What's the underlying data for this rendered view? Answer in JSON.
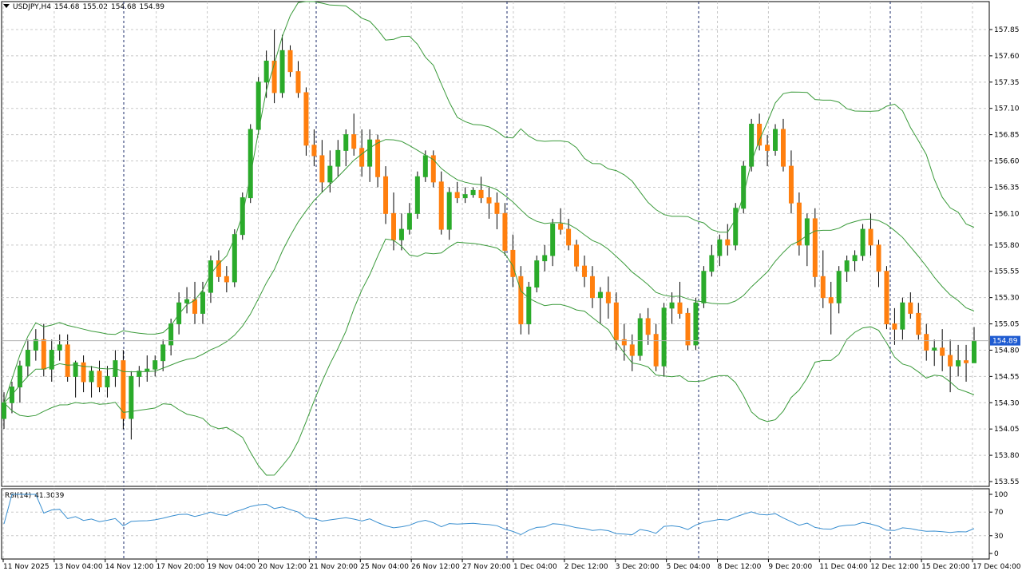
{
  "header": {
    "symbol": "USDJPY,H4",
    "open": "154.68",
    "high": "155.02",
    "low": "154.68",
    "close": "154.89"
  },
  "rsi": {
    "label": "RSI(14)",
    "value": "41.3039",
    "scale": [
      "100",
      "70",
      "30",
      "0"
    ]
  },
  "price_axis": [
    "157.85",
    "157.60",
    "157.35",
    "157.10",
    "156.85",
    "156.60",
    "156.35",
    "156.10",
    "155.80",
    "155.55",
    "155.30",
    "155.05",
    "154.80",
    "154.55",
    "154.30",
    "154.05",
    "153.80",
    "153.55"
  ],
  "current_price": "154.89",
  "time_axis": [
    "11 Nov 2025",
    "13 Nov 04:00",
    "14 Nov 12:00",
    "17 Nov 20:00",
    "19 Nov 04:00",
    "20 Nov 12:00",
    "21 Nov 20:00",
    "25 Nov 04:00",
    "26 Nov 12:00",
    "27 Nov 20:00",
    "1 Dec 04:00",
    "2 Dec 12:00",
    "3 Dec 20:00",
    "5 Dec 04:00",
    "8 Dec 12:00",
    "9 Dec 20:00",
    "11 Dec 04:00",
    "12 Dec 12:00",
    "15 Dec 20:00",
    "17 Dec 04:00"
  ],
  "colors": {
    "bull": "#2aab2a",
    "bear": "#ff7f0e",
    "bands": "#3a9a3a",
    "rsi": "#3a8fd0",
    "grid": "#c8c8c8",
    "price_tag": "#1e5bd1"
  },
  "chart_data": {
    "type": "candlestick",
    "symbol": "USDJPY",
    "timeframe": "H4",
    "ylim": [
      153.55,
      157.85
    ],
    "candles": [
      [
        154.15,
        154.4,
        154.05,
        154.3
      ],
      [
        154.3,
        154.5,
        154.2,
        154.45
      ],
      [
        154.45,
        154.7,
        154.3,
        154.65
      ],
      [
        154.65,
        154.9,
        154.55,
        154.8
      ],
      [
        154.8,
        155.0,
        154.7,
        154.9
      ],
      [
        154.9,
        155.05,
        154.55,
        154.62
      ],
      [
        154.62,
        154.9,
        154.5,
        154.8
      ],
      [
        154.8,
        154.95,
        154.7,
        154.85
      ],
      [
        154.85,
        154.95,
        154.5,
        154.55
      ],
      [
        154.55,
        154.7,
        154.35,
        154.68
      ],
      [
        154.68,
        154.75,
        154.4,
        154.5
      ],
      [
        154.5,
        154.65,
        154.35,
        154.6
      ],
      [
        154.6,
        154.7,
        154.4,
        154.45
      ],
      [
        154.45,
        154.65,
        154.35,
        154.55
      ],
      [
        154.55,
        154.8,
        154.45,
        154.7
      ],
      [
        154.7,
        154.8,
        154.05,
        154.15
      ],
      [
        154.15,
        154.6,
        153.95,
        154.55
      ],
      [
        154.55,
        154.65,
        154.45,
        154.6
      ],
      [
        154.6,
        154.75,
        154.5,
        154.62
      ],
      [
        154.62,
        154.75,
        154.55,
        154.7
      ],
      [
        154.7,
        154.9,
        154.6,
        154.85
      ],
      [
        154.85,
        155.1,
        154.75,
        155.05
      ],
      [
        155.05,
        155.35,
        154.95,
        155.25
      ],
      [
        155.25,
        155.4,
        155.15,
        155.28
      ],
      [
        155.28,
        155.45,
        155.05,
        155.15
      ],
      [
        155.15,
        155.45,
        155.05,
        155.35
      ],
      [
        155.35,
        155.7,
        155.25,
        155.65
      ],
      [
        155.65,
        155.75,
        155.45,
        155.5
      ],
      [
        155.5,
        155.6,
        155.35,
        155.45
      ],
      [
        155.45,
        155.95,
        155.4,
        155.9
      ],
      [
        155.9,
        156.3,
        155.85,
        156.25
      ],
      [
        156.25,
        156.95,
        156.2,
        156.9
      ],
      [
        156.9,
        157.4,
        156.85,
        157.35
      ],
      [
        157.35,
        157.65,
        157.2,
        157.55
      ],
      [
        157.55,
        157.85,
        157.15,
        157.25
      ],
      [
        157.25,
        157.8,
        157.2,
        157.65
      ],
      [
        157.65,
        157.7,
        157.4,
        157.45
      ],
      [
        157.45,
        157.55,
        157.2,
        157.25
      ],
      [
        157.25,
        157.3,
        156.65,
        156.75
      ],
      [
        156.75,
        156.9,
        156.55,
        156.65
      ],
      [
        156.65,
        156.8,
        156.3,
        156.4
      ],
      [
        156.4,
        156.7,
        156.3,
        156.55
      ],
      [
        156.55,
        156.8,
        156.45,
        156.7
      ],
      [
        156.7,
        156.9,
        156.55,
        156.85
      ],
      [
        156.85,
        157.05,
        156.65,
        156.72
      ],
      [
        156.72,
        156.9,
        156.45,
        156.55
      ],
      [
        156.55,
        156.9,
        156.4,
        156.8
      ],
      [
        156.8,
        156.85,
        156.35,
        156.45
      ],
      [
        156.45,
        156.55,
        156.0,
        156.1
      ],
      [
        156.1,
        156.3,
        155.75,
        155.85
      ],
      [
        155.85,
        156.1,
        155.75,
        155.95
      ],
      [
        155.95,
        156.2,
        155.9,
        156.1
      ],
      [
        156.1,
        156.5,
        156.05,
        156.45
      ],
      [
        156.45,
        156.7,
        156.4,
        156.65
      ],
      [
        156.65,
        156.7,
        156.35,
        156.4
      ],
      [
        156.4,
        156.5,
        155.9,
        155.95
      ],
      [
        155.95,
        156.35,
        155.85,
        156.3
      ],
      [
        156.3,
        156.4,
        156.2,
        156.25
      ],
      [
        156.25,
        156.35,
        156.2,
        156.28
      ],
      [
        156.28,
        156.35,
        156.25,
        156.32
      ],
      [
        156.32,
        156.45,
        156.2,
        156.25
      ],
      [
        156.25,
        156.35,
        156.05,
        156.2
      ],
      [
        156.2,
        156.3,
        155.95,
        156.1
      ],
      [
        156.1,
        156.2,
        155.7,
        155.75
      ],
      [
        155.75,
        155.9,
        155.4,
        155.5
      ],
      [
        155.5,
        155.6,
        154.95,
        155.05
      ],
      [
        155.05,
        155.45,
        154.95,
        155.4
      ],
      [
        155.4,
        155.7,
        155.35,
        155.65
      ],
      [
        155.65,
        155.8,
        155.55,
        155.7
      ],
      [
        155.7,
        156.05,
        155.6,
        156.0
      ],
      [
        156.0,
        156.15,
        155.9,
        155.95
      ],
      [
        155.95,
        156.05,
        155.75,
        155.8
      ],
      [
        155.8,
        155.85,
        155.55,
        155.6
      ],
      [
        155.6,
        155.7,
        155.4,
        155.5
      ],
      [
        155.5,
        155.6,
        155.2,
        155.3
      ],
      [
        155.3,
        155.4,
        155.05,
        155.35
      ],
      [
        155.35,
        155.5,
        155.1,
        155.25
      ],
      [
        155.25,
        155.35,
        154.8,
        154.9
      ],
      [
        154.9,
        155.05,
        154.7,
        154.85
      ],
      [
        154.85,
        154.95,
        154.6,
        154.75
      ],
      [
        154.75,
        155.15,
        154.7,
        155.1
      ],
      [
        155.1,
        155.2,
        154.85,
        154.95
      ],
      [
        154.95,
        155.05,
        154.6,
        154.65
      ],
      [
        154.65,
        155.25,
        154.55,
        155.2
      ],
      [
        155.2,
        155.35,
        155.05,
        155.25
      ],
      [
        155.25,
        155.45,
        155.1,
        155.15
      ],
      [
        155.15,
        155.2,
        154.8,
        154.85
      ],
      [
        154.85,
        155.3,
        154.8,
        155.25
      ],
      [
        155.25,
        155.6,
        155.2,
        155.55
      ],
      [
        155.55,
        155.8,
        155.5,
        155.7
      ],
      [
        155.7,
        155.9,
        155.6,
        155.85
      ],
      [
        155.85,
        156.0,
        155.7,
        155.8
      ],
      [
        155.8,
        156.2,
        155.75,
        156.15
      ],
      [
        156.15,
        156.6,
        156.1,
        156.55
      ],
      [
        156.55,
        157.0,
        156.5,
        156.95
      ],
      [
        156.95,
        157.05,
        156.7,
        156.75
      ],
      [
        156.75,
        156.85,
        156.55,
        156.7
      ],
      [
        156.7,
        156.95,
        156.65,
        156.9
      ],
      [
        156.9,
        157.0,
        156.5,
        156.55
      ],
      [
        156.55,
        156.7,
        156.1,
        156.2
      ],
      [
        156.2,
        156.3,
        155.7,
        155.8
      ],
      [
        155.8,
        156.1,
        155.6,
        156.05
      ],
      [
        156.05,
        156.15,
        155.4,
        155.5
      ],
      [
        155.5,
        155.75,
        155.2,
        155.3
      ],
      [
        155.3,
        155.45,
        154.95,
        155.25
      ],
      [
        155.25,
        155.6,
        155.15,
        155.55
      ],
      [
        155.55,
        155.7,
        155.45,
        155.65
      ],
      [
        155.65,
        155.75,
        155.55,
        155.7
      ],
      [
        155.7,
        156.0,
        155.65,
        155.95
      ],
      [
        155.95,
        156.1,
        155.7,
        155.8
      ],
      [
        155.8,
        155.85,
        155.4,
        155.55
      ],
      [
        155.55,
        155.6,
        155.0,
        155.05
      ],
      [
        155.05,
        155.2,
        154.85,
        155.0
      ],
      [
        155.0,
        155.3,
        154.9,
        155.25
      ],
      [
        155.25,
        155.35,
        155.1,
        155.15
      ],
      [
        155.15,
        155.25,
        154.9,
        154.95
      ],
      [
        154.95,
        155.05,
        154.7,
        154.8
      ],
      [
        154.8,
        154.9,
        154.65,
        154.82
      ],
      [
        154.82,
        155.0,
        154.6,
        154.75
      ],
      [
        154.75,
        154.9,
        154.4,
        154.65
      ],
      [
        154.65,
        154.85,
        154.55,
        154.7
      ],
      [
        154.7,
        154.85,
        154.5,
        154.68
      ],
      [
        154.68,
        155.02,
        154.68,
        154.89
      ]
    ]
  }
}
